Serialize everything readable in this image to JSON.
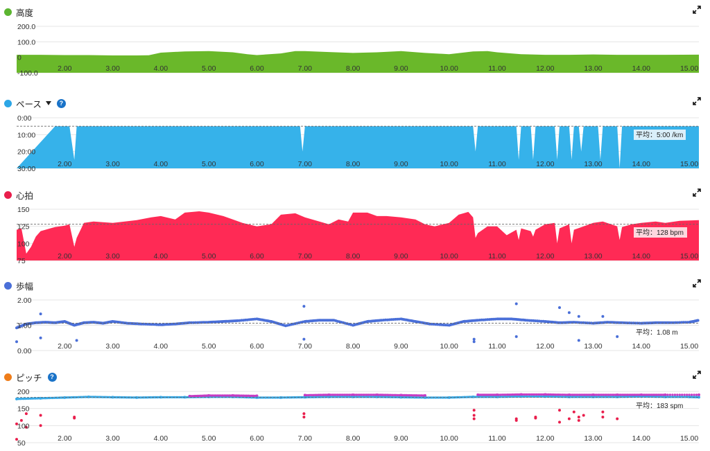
{
  "x_ticks": [
    "2.00",
    "3.00",
    "4.00",
    "5.00",
    "6.00",
    "7.00",
    "8.00",
    "9.00",
    "10.00",
    "11.00",
    "12.00",
    "13.00",
    "14.00",
    "15.00"
  ],
  "panels": [
    {
      "key": "altitude",
      "title": "高度",
      "color": "#5cb531",
      "icon": "expand-icon"
    },
    {
      "key": "pace",
      "title": "ペース",
      "color": "#2ca6e6",
      "has_caret": true,
      "has_help": true,
      "help_text": "?",
      "icon": "expand-icon",
      "avg_label": "平均：5:00 /km"
    },
    {
      "key": "heart_rate",
      "title": "心拍",
      "color": "#e91e4c",
      "icon": "expand-icon",
      "avg_label": "平均：128 bpm"
    },
    {
      "key": "stride",
      "title": "歩幅",
      "color": "#4a6fd8",
      "icon": "expand-icon",
      "avg_label": "平均：1.08 m"
    },
    {
      "key": "cadence",
      "title": "ピッチ",
      "color": "#ef7d1a",
      "has_help": true,
      "help_text": "?",
      "icon": "expand-icon",
      "avg_label": "平均：183 spm"
    }
  ],
  "chart_data": [
    {
      "type": "area",
      "name": "altitude",
      "xlim": [
        1.0,
        15.2
      ],
      "ylim": [
        -100,
        200
      ],
      "yticks": [
        "200.0",
        "100.0",
        "0",
        "-100.0"
      ],
      "ytick_values": [
        200,
        100,
        0,
        -100
      ],
      "color": "#6ab82a",
      "x": [
        1.0,
        1.5,
        2.0,
        2.5,
        3.0,
        3.5,
        3.75,
        4.0,
        4.5,
        5.0,
        5.5,
        5.8,
        6.0,
        6.5,
        6.8,
        7.0,
        7.5,
        8.0,
        8.5,
        9.0,
        9.5,
        10.0,
        10.5,
        10.8,
        11.0,
        11.5,
        12.0,
        12.5,
        13.0,
        13.5,
        14.0,
        14.5,
        15.2
      ],
      "y": [
        16,
        16,
        14,
        14,
        12,
        12,
        13,
        30,
        38,
        40,
        32,
        20,
        14,
        25,
        40,
        40,
        34,
        28,
        32,
        40,
        28,
        20,
        38,
        40,
        32,
        20,
        16,
        16,
        18,
        16,
        16,
        16,
        17
      ]
    },
    {
      "type": "area",
      "name": "pace",
      "xlim": [
        1.0,
        15.2
      ],
      "ylim": [
        0,
        30
      ],
      "inverted": true,
      "yticks": [
        "0:00",
        "10:00",
        "20:00",
        "30:00"
      ],
      "ytick_values": [
        0,
        10,
        20,
        30
      ],
      "color": "#36b2ea",
      "average": 5.0,
      "x": [
        1.0,
        1.8,
        2.1,
        2.2,
        2.25,
        3.0,
        4.0,
        5.0,
        6.0,
        6.9,
        6.95,
        7.0,
        8.0,
        9.0,
        9.6,
        10.0,
        10.5,
        10.55,
        10.6,
        11.0,
        11.4,
        11.45,
        11.5,
        11.7,
        11.75,
        11.8,
        12.0,
        12.2,
        12.25,
        12.3,
        12.5,
        12.55,
        12.6,
        12.7,
        12.75,
        12.8,
        13.0,
        13.1,
        13.15,
        13.2,
        13.5,
        13.55,
        13.6,
        14.0,
        15.2
      ],
      "y": [
        30,
        5.0,
        5.0,
        25,
        5.0,
        5.0,
        5.0,
        5.0,
        5.0,
        5.0,
        20,
        5.0,
        5.0,
        5.0,
        5.0,
        5.0,
        5.0,
        20,
        5.0,
        5.0,
        5.0,
        25,
        5.0,
        5.0,
        25,
        5.0,
        5.0,
        5.0,
        25,
        5.0,
        5.0,
        25,
        5.0,
        5.0,
        20,
        5.0,
        5.0,
        5.0,
        25,
        5.0,
        5.0,
        30,
        5.0,
        5.0,
        5.0
      ]
    },
    {
      "type": "area",
      "name": "heart_rate",
      "xlim": [
        1.0,
        15.2
      ],
      "ylim": [
        75,
        150
      ],
      "yticks": [
        "150",
        "125",
        "100",
        "75"
      ],
      "ytick_values": [
        150,
        125,
        100,
        75
      ],
      "color": "#ff2a55",
      "average": 128,
      "x": [
        1.0,
        1.1,
        1.2,
        1.3,
        1.4,
        1.5,
        1.6,
        1.7,
        1.8,
        2.0,
        2.1,
        2.2,
        2.25,
        2.4,
        2.6,
        3.0,
        3.5,
        3.8,
        4.0,
        4.3,
        4.5,
        4.8,
        5.0,
        5.3,
        5.5,
        5.7,
        6.0,
        6.3,
        6.5,
        6.8,
        7.0,
        7.3,
        7.5,
        7.7,
        7.9,
        8.0,
        8.3,
        8.5,
        8.7,
        9.0,
        9.3,
        9.5,
        9.7,
        10.0,
        10.2,
        10.4,
        10.5,
        10.55,
        10.6,
        10.8,
        11.0,
        11.2,
        11.4,
        11.45,
        11.5,
        11.7,
        11.75,
        11.8,
        12.0,
        12.2,
        12.25,
        12.3,
        12.5,
        12.55,
        12.6,
        12.8,
        13.0,
        13.2,
        13.5,
        13.55,
        13.6,
        13.8,
        14.0,
        14.3,
        14.5,
        14.8,
        15.2
      ],
      "y": [
        120,
        122,
        85,
        95,
        110,
        118,
        120,
        122,
        124,
        126,
        128,
        95,
        108,
        130,
        132,
        130,
        134,
        138,
        140,
        135,
        145,
        147,
        145,
        140,
        135,
        130,
        125,
        128,
        142,
        144,
        138,
        132,
        128,
        135,
        132,
        145,
        145,
        140,
        140,
        138,
        135,
        128,
        125,
        130,
        142,
        146,
        138,
        108,
        115,
        125,
        125,
        112,
        120,
        105,
        122,
        118,
        110,
        120,
        128,
        130,
        100,
        122,
        128,
        100,
        120,
        125,
        130,
        132,
        125,
        105,
        124,
        128,
        130,
        132,
        130,
        133,
        134
      ]
    },
    {
      "type": "scatter",
      "name": "stride",
      "xlim": [
        1.0,
        15.2
      ],
      "ylim": [
        0,
        2
      ],
      "yticks": [
        "2.00",
        "1.00",
        "0.00"
      ],
      "ytick_values": [
        2,
        1,
        0
      ],
      "color": "#4a6fd8",
      "average": 1.08,
      "x": [
        1.0,
        1.2,
        1.4,
        1.6,
        1.8,
        2.0,
        2.2,
        2.4,
        2.6,
        2.8,
        3.0,
        3.3,
        3.6,
        4.0,
        4.3,
        4.6,
        5.0,
        5.3,
        5.6,
        6.0,
        6.3,
        6.6,
        7.0,
        7.3,
        7.6,
        8.0,
        8.3,
        8.6,
        9.0,
        9.3,
        9.6,
        10.0,
        10.3,
        10.6,
        11.0,
        11.3,
        11.6,
        12.0,
        12.3,
        12.6,
        13.0,
        13.3,
        13.6,
        14.0,
        14.3,
        14.6,
        15.0,
        15.2,
        6.98,
        6.98,
        1.5,
        1.5,
        11.4,
        11.4,
        12.3,
        12.5,
        12.7,
        12.7,
        13.2,
        13.5,
        10.52,
        10.52,
        2.25,
        1.0
      ],
      "y": [
        0.9,
        1.05,
        1.1,
        1.12,
        1.1,
        1.15,
        1.0,
        1.1,
        1.12,
        1.08,
        1.15,
        1.08,
        1.05,
        1.02,
        1.05,
        1.1,
        1.12,
        1.15,
        1.18,
        1.25,
        1.15,
        0.98,
        1.15,
        1.2,
        1.2,
        1.0,
        1.15,
        1.2,
        1.25,
        1.15,
        1.05,
        1.0,
        1.15,
        1.2,
        1.25,
        1.25,
        1.2,
        1.15,
        1.1,
        1.12,
        1.08,
        1.12,
        1.1,
        1.08,
        1.1,
        1.1,
        1.12,
        1.2,
        1.75,
        0.45,
        1.45,
        0.5,
        1.85,
        0.55,
        1.7,
        1.5,
        1.35,
        0.4,
        1.35,
        0.55,
        0.45,
        0.35,
        0.4,
        0.35
      ]
    },
    {
      "type": "scatter",
      "name": "cadence",
      "xlim": [
        1.0,
        15.2
      ],
      "ylim": [
        50,
        200
      ],
      "yticks": [
        "200",
        "150",
        "100",
        "50"
      ],
      "ytick_values": [
        200,
        150,
        100,
        50
      ],
      "colors": {
        "main": "#36a9e6",
        "high": "#c73cc3",
        "low": "#e91e4c",
        "green": "#4caf50"
      },
      "average": 183,
      "series": [
        {
          "name": "blue",
          "x": [
            1.0,
            1.5,
            2.0,
            2.5,
            3.0,
            3.5,
            4.0,
            4.5,
            5.0,
            5.5,
            6.0,
            6.5,
            7.0,
            7.5,
            8.0,
            8.5,
            9.0,
            9.5,
            10.0,
            10.5,
            11.0,
            11.5,
            12.0,
            12.5,
            13.0,
            13.5,
            14.0,
            14.5,
            15.0,
            15.2
          ],
          "y": [
            178,
            180,
            182,
            184,
            183,
            182,
            183,
            183,
            184,
            184,
            182,
            182,
            183,
            184,
            184,
            184,
            183,
            182,
            182,
            184,
            184,
            185,
            185,
            184,
            184,
            184,
            185,
            184,
            184,
            183
          ]
        },
        {
          "name": "magenta",
          "x": [
            4.6,
            5.0,
            5.5,
            6.0,
            7.0,
            7.5,
            8.0,
            8.5,
            9.0,
            9.5,
            10.6,
            11.0,
            11.5,
            12.0,
            12.5,
            13.0,
            13.5,
            14.0,
            14.5,
            15.2
          ],
          "y": [
            186,
            188,
            188,
            187,
            189,
            190,
            190,
            190,
            189,
            188,
            190,
            190,
            191,
            191,
            190,
            190,
            190,
            190,
            190,
            190
          ]
        },
        {
          "name": "red",
          "x": [
            1.0,
            1.0,
            1.1,
            1.2,
            1.2,
            1.5,
            1.5,
            2.2,
            2.2,
            6.98,
            6.98,
            10.52,
            10.52,
            10.52,
            11.4,
            11.4,
            11.8,
            11.8,
            12.3,
            12.3,
            12.5,
            12.6,
            12.7,
            12.7,
            12.8,
            13.2,
            13.2,
            13.5
          ],
          "y": [
            60,
            105,
            115,
            135,
            95,
            130,
            100,
            125,
            122,
            135,
            125,
            145,
            130,
            120,
            120,
            115,
            125,
            122,
            145,
            110,
            120,
            140,
            125,
            115,
            130,
            140,
            125,
            120
          ]
        }
      ]
    }
  ]
}
